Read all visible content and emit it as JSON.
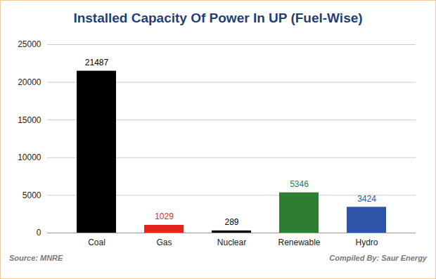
{
  "chart_data": {
    "type": "bar",
    "title": "Installed Capacity Of Power In UP (Fuel-Wise)",
    "categories": [
      "Coal",
      "Gas",
      "Nuclear",
      "Renewable",
      "Hydro"
    ],
    "values": [
      21487,
      1029,
      289,
      5346,
      3424
    ],
    "colors": [
      "#000000",
      "#e52420",
      "#000000",
      "#2e7d32",
      "#2f55a8"
    ],
    "ylim": [
      0,
      25000
    ],
    "yticks": [
      0,
      5000,
      10000,
      15000,
      20000,
      25000
    ],
    "grid": true,
    "data_labels": true,
    "annotations": [
      "Source: MNRE",
      "Compiled By: Saur Energy"
    ]
  }
}
